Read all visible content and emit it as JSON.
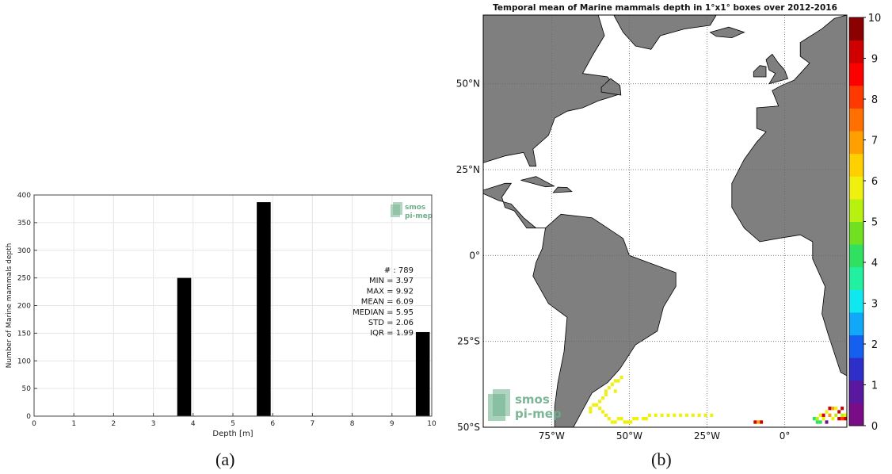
{
  "chart_data": [
    {
      "type": "bar",
      "panel": "(a)",
      "xlabel": "Depth [m]",
      "ylabel": "Number of Marine mammals depth",
      "xlim": [
        0,
        10
      ],
      "ylim": [
        0,
        400
      ],
      "xticks": [
        0,
        1,
        2,
        3,
        4,
        5,
        6,
        7,
        8,
        9,
        10
      ],
      "yticks": [
        0,
        50,
        100,
        150,
        200,
        250,
        300,
        350,
        400
      ],
      "grid": true,
      "bars": [
        {
          "x0": 3.6,
          "x1": 3.95,
          "value": 250
        },
        {
          "x0": 5.6,
          "x1": 5.95,
          "value": 387
        },
        {
          "x0": 9.6,
          "x1": 9.95,
          "value": 152
        }
      ],
      "bar_color": "#000000",
      "stats": [
        "# : 789",
        "MIN = 3.97",
        "MAX =  9.92",
        "MEAN = 6.09",
        "MEDIAN = 5.95",
        "STD = 2.06",
        "IQR = 1.99"
      ],
      "logo": [
        "smos",
        "pi-mep"
      ]
    },
    {
      "type": "heatmap",
      "panel": "(b)",
      "title": "Temporal mean of Marine mammals depth in 1°x1° boxes over 2012-2016",
      "lon_range": [
        -97,
        20
      ],
      "lat_range": [
        -50,
        70
      ],
      "x_ticks": [
        "75°W",
        "50°W",
        "25°W",
        "0°"
      ],
      "x_tick_values": [
        -75,
        -50,
        -25,
        0
      ],
      "y_ticks": [
        "50°N",
        "25°N",
        "0°",
        "25°S",
        "50°S"
      ],
      "y_tick_values": [
        50,
        25,
        0,
        -25,
        -50
      ],
      "colorbar_range": [
        0,
        10
      ],
      "colorbar_ticks": [
        "0",
        "1",
        "2",
        "3",
        "4",
        "5",
        "6",
        "7",
        "8",
        "9",
        "10"
      ],
      "colormap": [
        "#7b0c87",
        "#5a18a0",
        "#2e2ec8",
        "#1660f0",
        "#10a8f8",
        "#10e8f0",
        "#20f0a0",
        "#30e060",
        "#70e020",
        "#b8f010",
        "#f0f010",
        "#ffd000",
        "#ffa000",
        "#ff7000",
        "#ff3a00",
        "#ff0000",
        "#d00000",
        "#8b0000"
      ],
      "land_color": "#7f7f7f",
      "grid": true,
      "data_points_note": "Boxes with values approximately 6 (light green) along a track in South Atlantic near 37°S–49°S, 60°W–22°W; mixed red/yellow/green boxes near 45°S–49°S, 8°E–20°E and near 10°W.",
      "logo": [
        "smos",
        "pi-mep"
      ]
    }
  ],
  "captions": {
    "a": "(a)",
    "b": "(b)"
  }
}
